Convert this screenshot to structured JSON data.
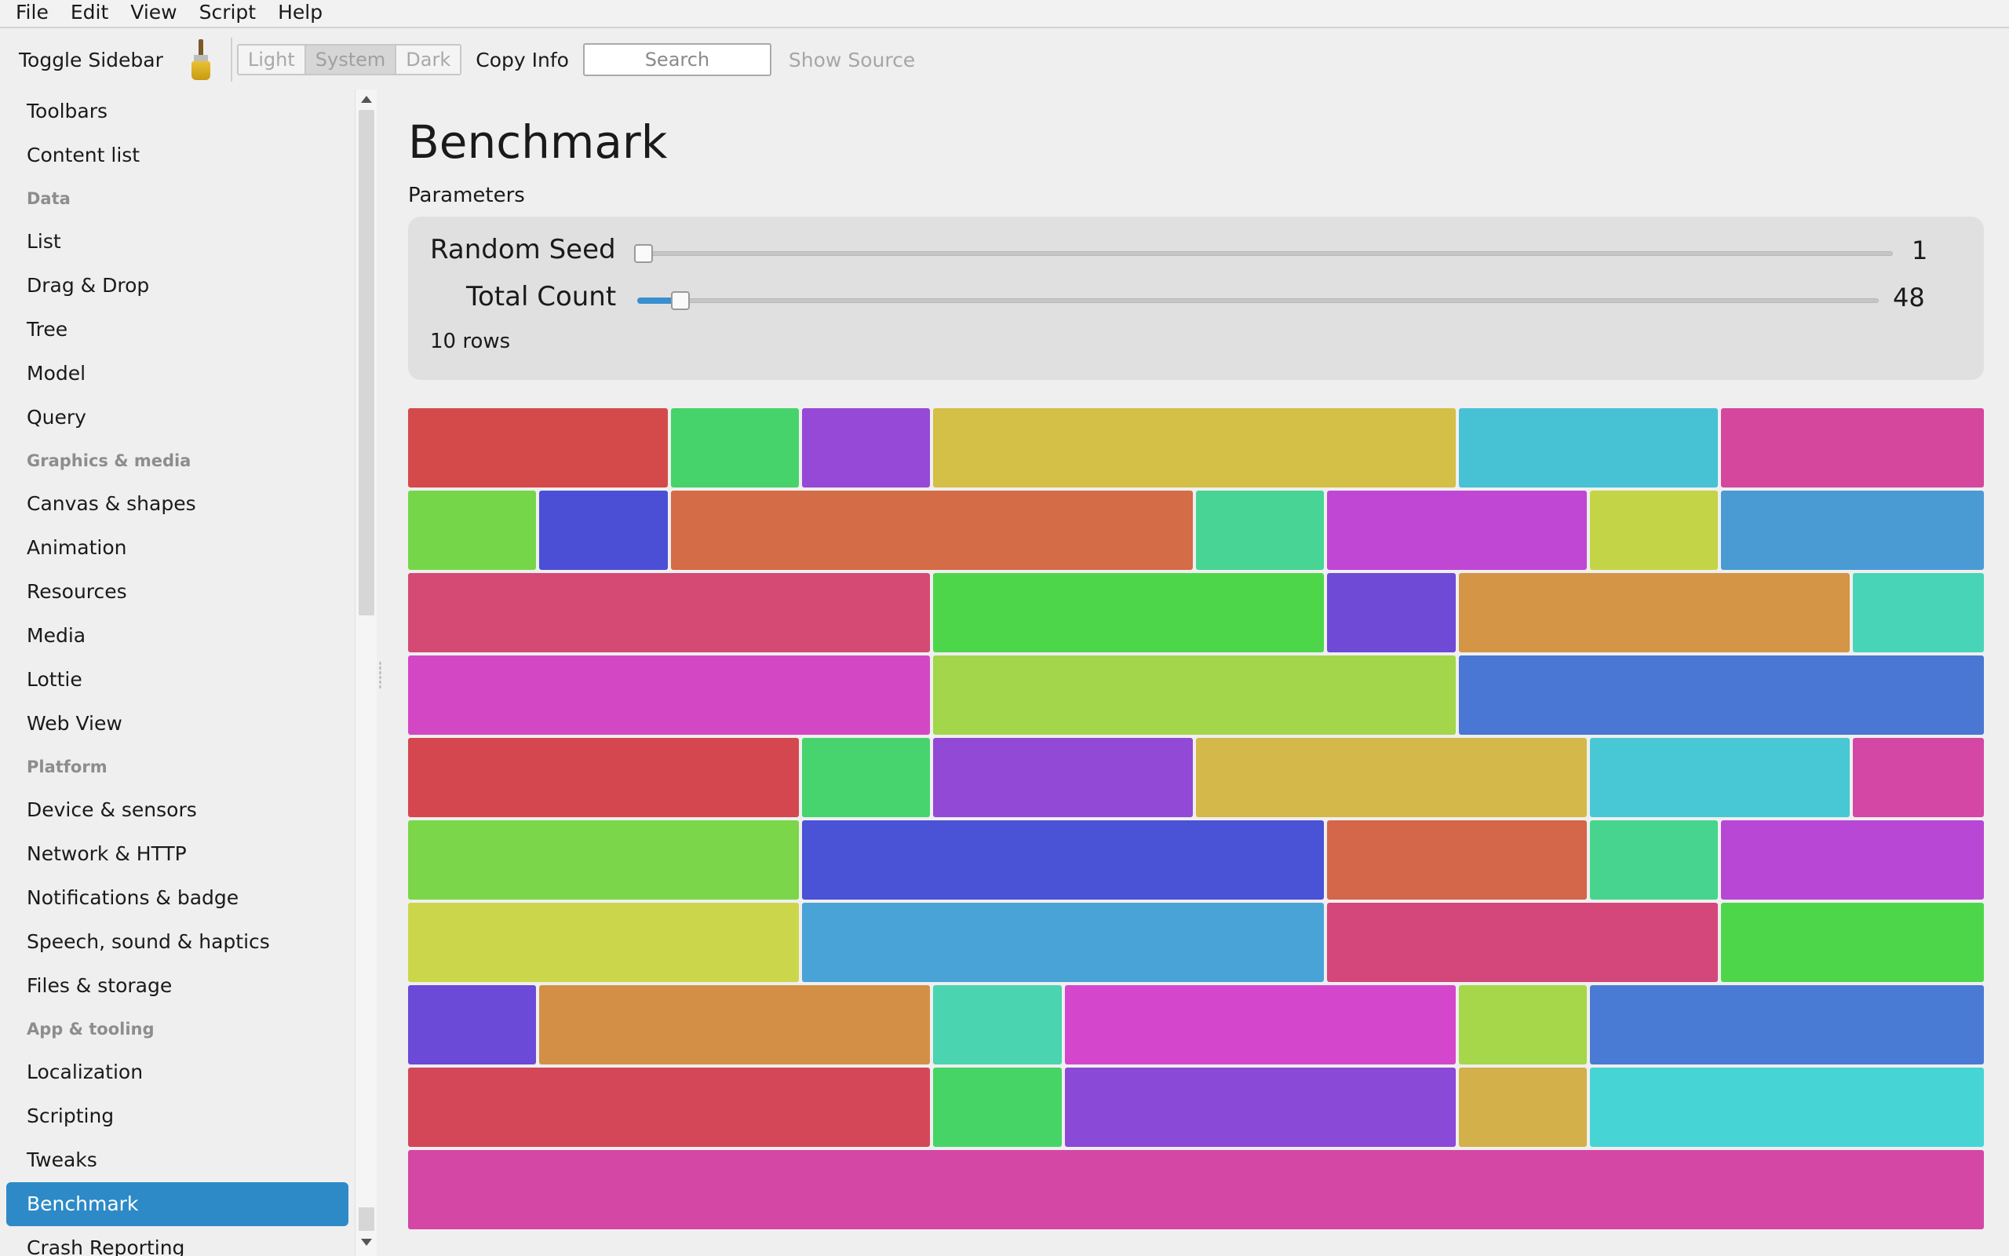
{
  "menu": [
    "File",
    "Edit",
    "View",
    "Script",
    "Help"
  ],
  "toolbar": {
    "toggle_sidebar": "Toggle Sidebar",
    "theme_options": [
      "Light",
      "System",
      "Dark"
    ],
    "theme_selected": "System",
    "copy_info": "Copy Info",
    "search_placeholder": "Search",
    "show_source": "Show Source"
  },
  "sidebar": {
    "items": [
      {
        "type": "item",
        "label": "Toolbars"
      },
      {
        "type": "item",
        "label": "Content list"
      },
      {
        "type": "header",
        "label": "Data"
      },
      {
        "type": "item",
        "label": "List"
      },
      {
        "type": "item",
        "label": "Drag & Drop"
      },
      {
        "type": "item",
        "label": "Tree"
      },
      {
        "type": "item",
        "label": "Model"
      },
      {
        "type": "item",
        "label": "Query"
      },
      {
        "type": "header",
        "label": "Graphics & media"
      },
      {
        "type": "item",
        "label": "Canvas & shapes"
      },
      {
        "type": "item",
        "label": "Animation"
      },
      {
        "type": "item",
        "label": "Resources"
      },
      {
        "type": "item",
        "label": "Media"
      },
      {
        "type": "item",
        "label": "Lottie"
      },
      {
        "type": "item",
        "label": "Web View"
      },
      {
        "type": "header",
        "label": "Platform"
      },
      {
        "type": "item",
        "label": "Device & sensors"
      },
      {
        "type": "item",
        "label": "Network & HTTP"
      },
      {
        "type": "item",
        "label": "Notifications & badge"
      },
      {
        "type": "item",
        "label": "Speech, sound & haptics"
      },
      {
        "type": "item",
        "label": "Files & storage"
      },
      {
        "type": "header",
        "label": "App & tooling"
      },
      {
        "type": "item",
        "label": "Localization"
      },
      {
        "type": "item",
        "label": "Scripting"
      },
      {
        "type": "item",
        "label": "Tweaks"
      },
      {
        "type": "item",
        "label": "Benchmark",
        "selected": true
      },
      {
        "type": "item",
        "label": "Crash Reporting"
      }
    ]
  },
  "main": {
    "title": "Benchmark",
    "params_label": "Parameters",
    "random_seed": {
      "label": "Random Seed",
      "value": "1",
      "fraction": 0.0
    },
    "total_count": {
      "label": "Total Count",
      "value": "48",
      "fraction": 0.03
    },
    "rows_text": "10 rows"
  },
  "grid": {
    "rows": [
      [
        [
          2,
          "#d44a4a"
        ],
        [
          1,
          "#47d36b"
        ],
        [
          1,
          "#9549d6"
        ],
        [
          4,
          "#d4bf47"
        ],
        [
          2,
          "#47c1d4"
        ],
        [
          2,
          "#d4479d"
        ]
      ],
      [
        [
          1,
          "#76d64a"
        ],
        [
          1,
          "#4a4fd6"
        ],
        [
          4,
          "#d46c47"
        ],
        [
          1,
          "#47d495"
        ],
        [
          2,
          "#c047d4"
        ],
        [
          1,
          "#c4d447"
        ],
        [
          2,
          "#4a9ad4"
        ]
      ],
      [
        [
          4,
          "#d44a74"
        ],
        [
          3,
          "#4ed64a"
        ],
        [
          1,
          "#6e4ad6"
        ],
        [
          3,
          "#d49547"
        ],
        [
          1,
          "#47d4b7"
        ]
      ],
      [
        [
          4,
          "#d447c4"
        ],
        [
          4,
          "#a3d64a"
        ],
        [
          4,
          "#4a76d4"
        ]
      ],
      [
        [
          3,
          "#d4474e"
        ],
        [
          1,
          "#47d46e"
        ],
        [
          2,
          "#9249d6"
        ],
        [
          3,
          "#d4b84a"
        ],
        [
          2,
          "#47c8d4"
        ],
        [
          1,
          "#d447a4"
        ]
      ],
      [
        [
          3,
          "#7bd64a"
        ],
        [
          4,
          "#4a52d6"
        ],
        [
          2,
          "#d4664a"
        ],
        [
          1,
          "#47d48f"
        ],
        [
          2,
          "#b747d4"
        ]
      ],
      [
        [
          3,
          "#ccd64a"
        ],
        [
          4,
          "#4aa3d6"
        ],
        [
          3,
          "#d4477b"
        ],
        [
          2,
          "#4ed64a"
        ]
      ],
      [
        [
          1,
          "#6a4ad6"
        ],
        [
          3,
          "#d48f47"
        ],
        [
          1,
          "#4ad4b0"
        ],
        [
          3,
          "#d447cc"
        ],
        [
          1,
          "#a6d64a"
        ],
        [
          3,
          "#4a7bd4"
        ]
      ],
      [
        [
          4,
          "#d44759"
        ],
        [
          1,
          "#47d467"
        ],
        [
          3,
          "#8a49d6"
        ],
        [
          1,
          "#d4b04a"
        ],
        [
          3,
          "#47d4d4"
        ]
      ],
      [
        [
          12,
          "#d447a4"
        ]
      ]
    ]
  }
}
